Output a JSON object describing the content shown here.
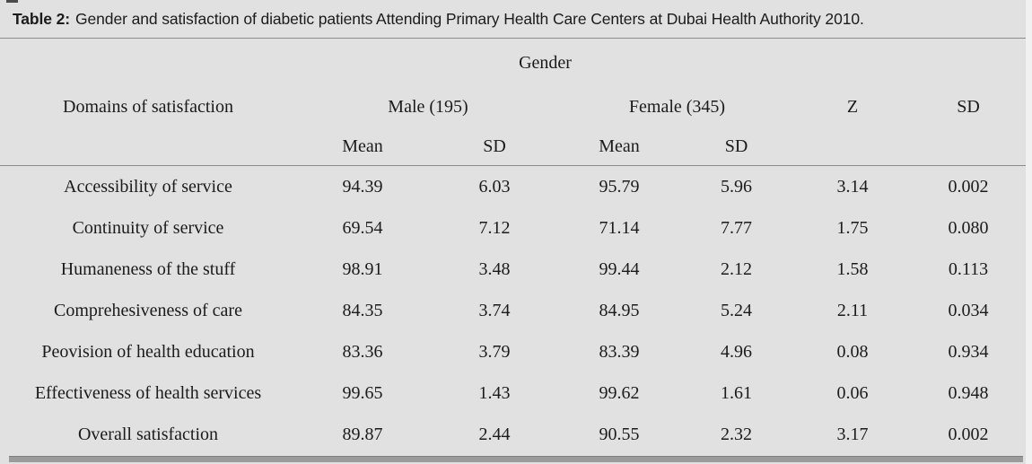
{
  "colors": {
    "table_background": "#e1e1e1",
    "rule_line": "#8c8c8c",
    "bottom_bar": "#9b9b9b",
    "text": "#1b1b1b"
  },
  "title": {
    "label": "Table 2:",
    "text": "Gender and satisfaction of diabetic patients Attending Primary Health Care Centers at Dubai Health Authority 2010."
  },
  "header": {
    "gender": "Gender",
    "domains": "Domains of satisfaction",
    "male": "Male (195)",
    "female": "Female (345)",
    "z": "Z",
    "sd": "SD",
    "male_mean": "Mean",
    "male_sd": "SD",
    "female_mean": "Mean",
    "female_sd": "SD"
  },
  "rows": [
    {
      "domain": "Accessibility of service",
      "male_mean": "94.39",
      "male_sd": "6.03",
      "female_mean": "95.79",
      "female_sd": "5.96",
      "z": "3.14",
      "p": "0.002"
    },
    {
      "domain": "Continuity of service",
      "male_mean": "69.54",
      "male_sd": "7.12",
      "female_mean": "71.14",
      "female_sd": "7.77",
      "z": "1.75",
      "p": "0.080"
    },
    {
      "domain": "Humaneness of the stuff",
      "male_mean": "98.91",
      "male_sd": "3.48",
      "female_mean": "99.44",
      "female_sd": "2.12",
      "z": "1.58",
      "p": "0.113"
    },
    {
      "domain": "Comprehesiveness of care",
      "male_mean": "84.35",
      "male_sd": "3.74",
      "female_mean": "84.95",
      "female_sd": "5.24",
      "z": "2.11",
      "p": "0.034"
    },
    {
      "domain": "Peovision of health education",
      "male_mean": "83.36",
      "male_sd": "3.79",
      "female_mean": "83.39",
      "female_sd": "4.96",
      "z": "0.08",
      "p": "0.934"
    },
    {
      "domain": "Effectiveness of health services",
      "male_mean": "99.65",
      "male_sd": "1.43",
      "female_mean": "99.62",
      "female_sd": "1.61",
      "z": "0.06",
      "p": "0.948"
    },
    {
      "domain": "Overall satisfaction",
      "male_mean": "89.87",
      "male_sd": "2.44",
      "female_mean": "90.55",
      "female_sd": "2.32",
      "z": "3.17",
      "p": "0.002"
    }
  ]
}
